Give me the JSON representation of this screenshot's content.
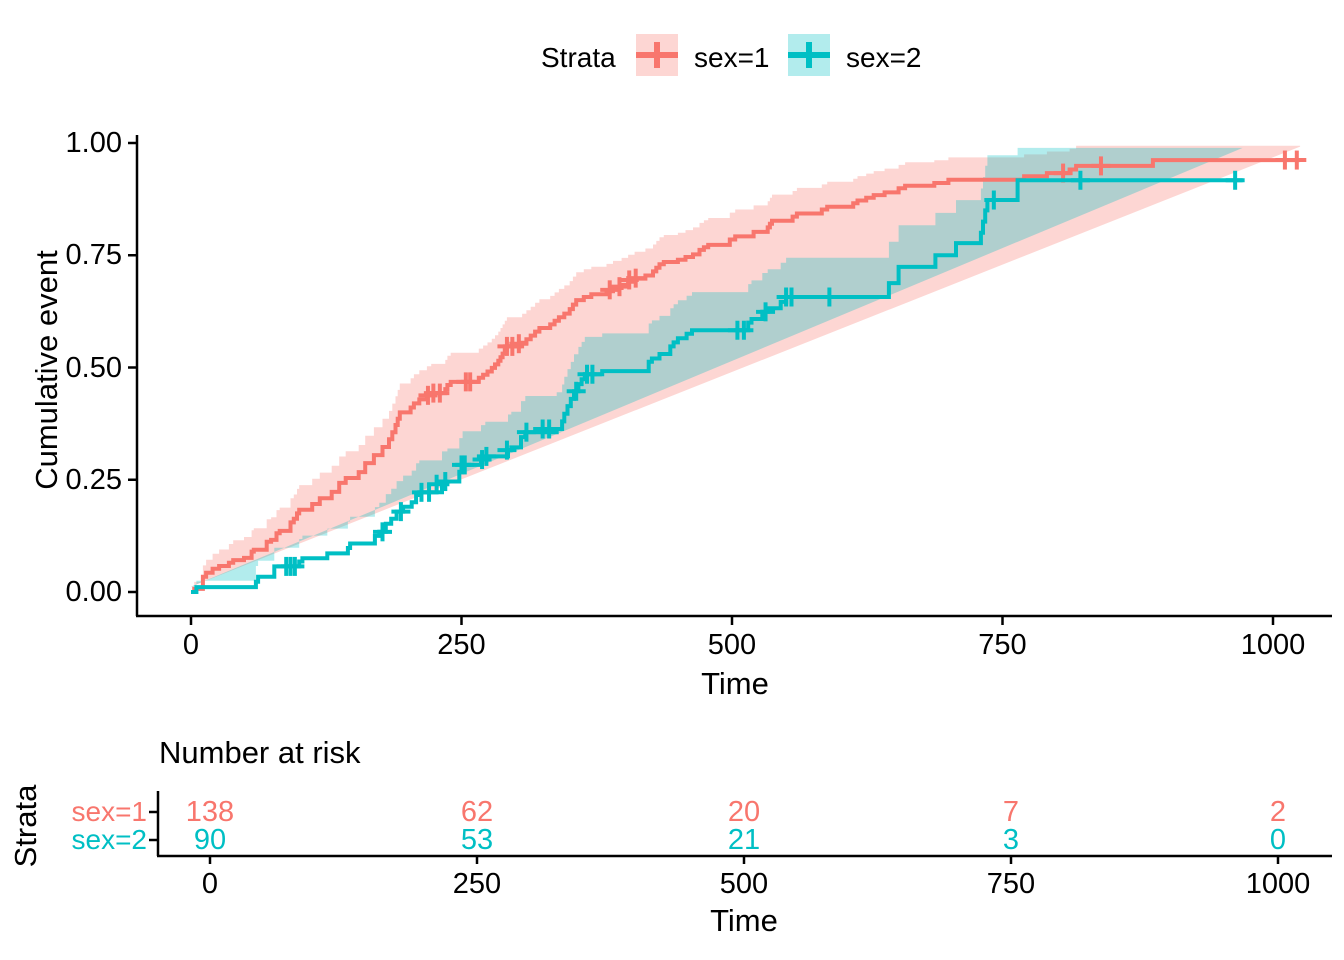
{
  "legend": {
    "title": "Strata",
    "items": [
      {
        "label": "sex=1",
        "color": "#F8766D",
        "fill": "rgba(248,118,109,0.30)"
      },
      {
        "label": "sex=2",
        "color": "#00BFC4",
        "fill": "rgba(0,191,196,0.30)"
      }
    ]
  },
  "main_plot": {
    "ylabel": "Cumulative event",
    "xlabel": "Time",
    "y_ticks": [
      {
        "v": 0.0,
        "label": "0.00"
      },
      {
        "v": 0.25,
        "label": "0.25"
      },
      {
        "v": 0.5,
        "label": "0.50"
      },
      {
        "v": 0.75,
        "label": "0.75"
      },
      {
        "v": 1.0,
        "label": "1.00"
      }
    ],
    "x_ticks": [
      {
        "t": 0,
        "label": "0"
      },
      {
        "t": 250,
        "label": "250"
      },
      {
        "t": 500,
        "label": "500"
      },
      {
        "t": 750,
        "label": "750"
      },
      {
        "t": 1000,
        "label": "1000"
      }
    ]
  },
  "risk_table": {
    "title": "Number at risk",
    "ylabel": "Strata",
    "xlabel": "Time",
    "times": [
      0,
      250,
      500,
      750,
      1000
    ],
    "x_tick_labels": [
      "0",
      "250",
      "500",
      "750",
      "1000"
    ],
    "rows": [
      {
        "label": "sex=1",
        "color": "#F8766D",
        "counts": [
          "138",
          "62",
          "20",
          "7",
          "2"
        ]
      },
      {
        "label": "sex=2",
        "color": "#00BFC4",
        "counts": [
          "90",
          "53",
          "21",
          "3",
          "0"
        ]
      }
    ]
  },
  "chart_data": {
    "type": "line",
    "subtype": "kaplan-meier-cumulative-event",
    "title": "",
    "xlabel": "Time",
    "ylabel": "Cumulative event",
    "xlim": [
      0,
      1030
    ],
    "ylim": [
      0,
      1
    ],
    "x_ticks": [
      0,
      250,
      500,
      750,
      1000
    ],
    "y_ticks": [
      0,
      0.25,
      0.5,
      0.75,
      1
    ],
    "legend_position": "top",
    "grid": false,
    "series": [
      {
        "name": "sex=1",
        "color": "#F8766D",
        "fill": "rgba(248,118,109,0.30)",
        "steps": [
          [
            0,
            0
          ],
          [
            3,
            0.007
          ],
          [
            11,
            0.034
          ],
          [
            14,
            0.043
          ],
          [
            20,
            0.052
          ],
          [
            26,
            0.058
          ],
          [
            35,
            0.065
          ],
          [
            39,
            0.071
          ],
          [
            49,
            0.076
          ],
          [
            56,
            0.09
          ],
          [
            58,
            0.094
          ],
          [
            70,
            0.112
          ],
          [
            74,
            0.116
          ],
          [
            79,
            0.131
          ],
          [
            82,
            0.136
          ],
          [
            92,
            0.155
          ],
          [
            95,
            0.163
          ],
          [
            98,
            0.175
          ],
          [
            100,
            0.183
          ],
          [
            112,
            0.196
          ],
          [
            119,
            0.209
          ],
          [
            130,
            0.223
          ],
          [
            137,
            0.243
          ],
          [
            143,
            0.254
          ],
          [
            155,
            0.267
          ],
          [
            161,
            0.287
          ],
          [
            169,
            0.305
          ],
          [
            177,
            0.323
          ],
          [
            183,
            0.34
          ],
          [
            186,
            0.356
          ],
          [
            189,
            0.372
          ],
          [
            191,
            0.386
          ],
          [
            193,
            0.4
          ],
          [
            203,
            0.411
          ],
          [
            206,
            0.42
          ],
          [
            211,
            0.429
          ],
          [
            218,
            0.438
          ],
          [
            222,
            0.443
          ],
          [
            235,
            0.452
          ],
          [
            237,
            0.461
          ],
          [
            240,
            0.468
          ],
          [
            266,
            0.477
          ],
          [
            270,
            0.484
          ],
          [
            274,
            0.491
          ],
          [
            278,
            0.499
          ],
          [
            281,
            0.507
          ],
          [
            284,
            0.515
          ],
          [
            286,
            0.523
          ],
          [
            288,
            0.531
          ],
          [
            290,
            0.539
          ],
          [
            292,
            0.547
          ],
          [
            306,
            0.555
          ],
          [
            310,
            0.563
          ],
          [
            314,
            0.571
          ],
          [
            318,
            0.58
          ],
          [
            322,
            0.588
          ],
          [
            332,
            0.596
          ],
          [
            336,
            0.604
          ],
          [
            340,
            0.612
          ],
          [
            345,
            0.62
          ],
          [
            350,
            0.63
          ],
          [
            353,
            0.64
          ],
          [
            356,
            0.65
          ],
          [
            363,
            0.657
          ],
          [
            370,
            0.663
          ],
          [
            384,
            0.67
          ],
          [
            390,
            0.677
          ],
          [
            398,
            0.684
          ],
          [
            404,
            0.691
          ],
          [
            410,
            0.698
          ],
          [
            420,
            0.705
          ],
          [
            427,
            0.714
          ],
          [
            430,
            0.722
          ],
          [
            433,
            0.73
          ],
          [
            437,
            0.735
          ],
          [
            450,
            0.74
          ],
          [
            457,
            0.746
          ],
          [
            464,
            0.752
          ],
          [
            470,
            0.762
          ],
          [
            474,
            0.768
          ],
          [
            478,
            0.773
          ],
          [
            498,
            0.785
          ],
          [
            503,
            0.792
          ],
          [
            520,
            0.802
          ],
          [
            533,
            0.812
          ],
          [
            535,
            0.82
          ],
          [
            537,
            0.827
          ],
          [
            556,
            0.836
          ],
          [
            560,
            0.843
          ],
          [
            583,
            0.852
          ],
          [
            588,
            0.858
          ],
          [
            612,
            0.866
          ],
          [
            616,
            0.872
          ],
          [
            624,
            0.878
          ],
          [
            631,
            0.884
          ],
          [
            641,
            0.89
          ],
          [
            654,
            0.899
          ],
          [
            660,
            0.905
          ],
          [
            687,
            0.911
          ],
          [
            700,
            0.918
          ],
          [
            770,
            0.926
          ],
          [
            791,
            0.933
          ],
          [
            812,
            0.941
          ],
          [
            818,
            0.949
          ],
          [
            889,
            0.962
          ],
          [
            1025,
            0.962
          ]
        ],
        "censors": [
          [
            219,
            0.438
          ],
          [
            224,
            0.443
          ],
          [
            230,
            0.443
          ],
          [
            254,
            0.468
          ],
          [
            258,
            0.468
          ],
          [
            292,
            0.547
          ],
          [
            297,
            0.547
          ],
          [
            303,
            0.553
          ],
          [
            387,
            0.673
          ],
          [
            396,
            0.68
          ],
          [
            405,
            0.695
          ],
          [
            411,
            0.699
          ],
          [
            806,
            0.933
          ],
          [
            841,
            0.949
          ],
          [
            1011,
            0.962
          ],
          [
            1022,
            0.962
          ]
        ],
        "ci_offsets": [
          [
            0,
            0.005,
            0.012
          ],
          [
            15,
            0.02,
            0.03
          ],
          [
            40,
            0.03,
            0.045
          ],
          [
            100,
            0.05,
            0.055
          ],
          [
            200,
            0.065,
            0.065
          ],
          [
            300,
            0.07,
            0.065
          ],
          [
            400,
            0.075,
            0.06
          ],
          [
            500,
            0.08,
            0.06
          ],
          [
            600,
            0.075,
            0.055
          ],
          [
            700,
            0.08,
            0.05
          ],
          [
            800,
            0.085,
            0.048
          ],
          [
            900,
            0.09,
            0.032
          ],
          [
            1025,
            0.075,
            0.03
          ]
        ]
      },
      {
        "name": "sex=2",
        "color": "#00BFC4",
        "fill": "rgba(0,191,196,0.30)",
        "steps": [
          [
            0,
            0
          ],
          [
            5,
            0.011
          ],
          [
            60,
            0.023
          ],
          [
            62,
            0.034
          ],
          [
            77,
            0.057
          ],
          [
            100,
            0.068
          ],
          [
            103,
            0.075
          ],
          [
            126,
            0.086
          ],
          [
            145,
            0.098
          ],
          [
            147,
            0.108
          ],
          [
            170,
            0.125
          ],
          [
            174,
            0.134
          ],
          [
            180,
            0.152
          ],
          [
            185,
            0.163
          ],
          [
            190,
            0.179
          ],
          [
            196,
            0.19
          ],
          [
            204,
            0.2
          ],
          [
            208,
            0.216
          ],
          [
            211,
            0.222
          ],
          [
            232,
            0.24
          ],
          [
            237,
            0.246
          ],
          [
            248,
            0.268
          ],
          [
            251,
            0.283
          ],
          [
            268,
            0.295
          ],
          [
            272,
            0.302
          ],
          [
            293,
            0.316
          ],
          [
            296,
            0.322
          ],
          [
            305,
            0.345
          ],
          [
            309,
            0.356
          ],
          [
            338,
            0.363
          ],
          [
            343,
            0.38
          ],
          [
            345,
            0.397
          ],
          [
            348,
            0.414
          ],
          [
            351,
            0.43
          ],
          [
            354,
            0.447
          ],
          [
            358,
            0.463
          ],
          [
            361,
            0.474
          ],
          [
            364,
            0.485
          ],
          [
            380,
            0.492
          ],
          [
            423,
            0.513
          ],
          [
            426,
            0.52
          ],
          [
            433,
            0.53
          ],
          [
            443,
            0.547
          ],
          [
            446,
            0.556
          ],
          [
            450,
            0.565
          ],
          [
            458,
            0.575
          ],
          [
            463,
            0.583
          ],
          [
            515,
            0.6
          ],
          [
            518,
            0.608
          ],
          [
            528,
            0.624
          ],
          [
            533,
            0.632
          ],
          [
            545,
            0.646
          ],
          [
            550,
            0.657
          ],
          [
            645,
            0.688
          ],
          [
            654,
            0.724
          ],
          [
            688,
            0.75
          ],
          [
            707,
            0.777
          ],
          [
            730,
            0.8
          ],
          [
            732,
            0.825
          ],
          [
            734,
            0.85
          ],
          [
            736,
            0.873
          ],
          [
            764,
            0.917
          ],
          [
            972,
            0.917
          ]
        ],
        "censors": [
          [
            88,
            0.057
          ],
          [
            92,
            0.057
          ],
          [
            96,
            0.057
          ],
          [
            177,
            0.134
          ],
          [
            194,
            0.179
          ],
          [
            213,
            0.222
          ],
          [
            220,
            0.222
          ],
          [
            227,
            0.24
          ],
          [
            235,
            0.246
          ],
          [
            250,
            0.283
          ],
          [
            253,
            0.283
          ],
          [
            269,
            0.295
          ],
          [
            273,
            0.302
          ],
          [
            292,
            0.316
          ],
          [
            310,
            0.356
          ],
          [
            325,
            0.363
          ],
          [
            331,
            0.363
          ],
          [
            356,
            0.447
          ],
          [
            366,
            0.485
          ],
          [
            371,
            0.485
          ],
          [
            505,
            0.583
          ],
          [
            511,
            0.583
          ],
          [
            531,
            0.624
          ],
          [
            550,
            0.657
          ],
          [
            555,
            0.657
          ],
          [
            590,
            0.657
          ],
          [
            742,
            0.873
          ],
          [
            822,
            0.917
          ],
          [
            965,
            0.917
          ]
        ],
        "ci_offsets": [
          [
            0,
            0.004,
            0.012
          ],
          [
            60,
            0.025,
            0.035
          ],
          [
            100,
            0.04,
            0.05
          ],
          [
            200,
            0.06,
            0.07
          ],
          [
            300,
            0.075,
            0.08
          ],
          [
            400,
            0.09,
            0.085
          ],
          [
            500,
            0.095,
            0.085
          ],
          [
            600,
            0.1,
            0.09
          ],
          [
            700,
            0.11,
            0.095
          ],
          [
            740,
            0.13,
            0.1
          ],
          [
            764,
            0.17,
            0.072
          ],
          [
            972,
            0.17,
            0.072
          ]
        ]
      }
    ],
    "risk_table": {
      "title": "Number at risk",
      "times": [
        0,
        250,
        500,
        750,
        1000
      ],
      "sex=1": [
        138,
        62,
        20,
        7,
        2
      ],
      "sex=2": [
        90,
        53,
        21,
        3,
        0
      ]
    }
  }
}
